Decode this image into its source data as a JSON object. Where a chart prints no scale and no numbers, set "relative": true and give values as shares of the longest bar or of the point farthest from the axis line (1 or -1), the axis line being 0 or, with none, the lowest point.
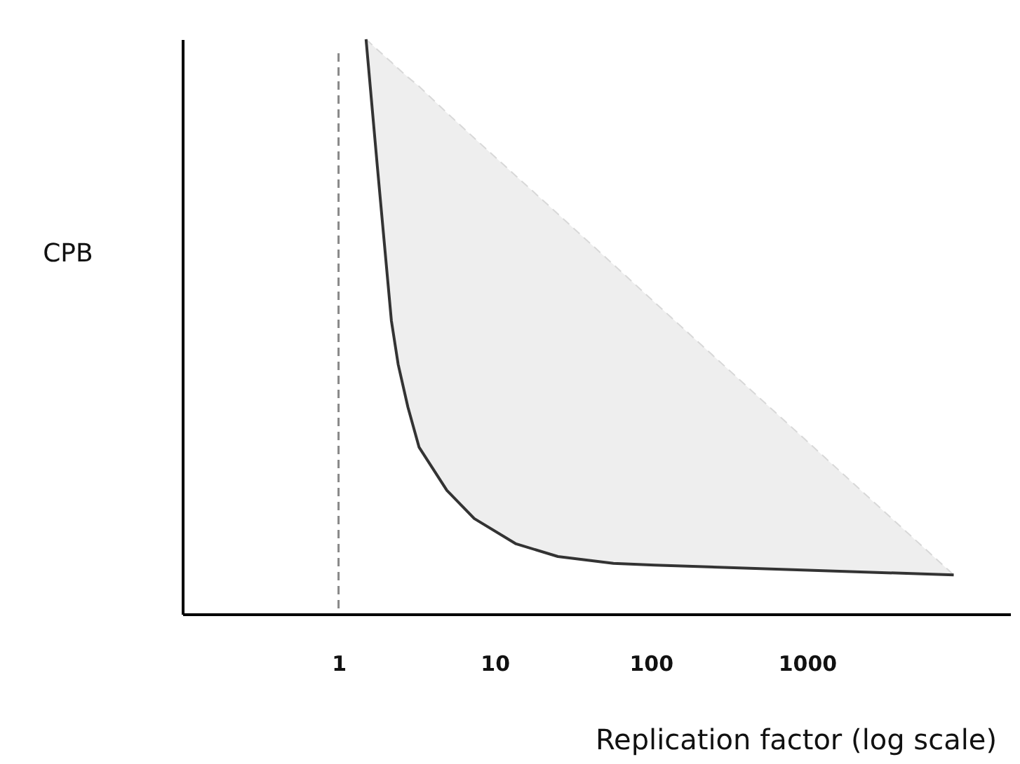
{
  "chart_data": {
    "type": "line",
    "xlabel": "Replication factor (log scale)",
    "ylabel": "CPB",
    "relative": true,
    "log": "x",
    "xlim": [
      0.1,
      20000
    ],
    "xticks": [
      1,
      10,
      100,
      {
        "value": 1000,
        "label": "1000"
      }
    ],
    "grid": false,
    "tick_labels": "x",
    "marker": "none",
    "ref_lines": [
      {
        "axis": "x",
        "value": 1,
        "color": "#888888",
        "line_style": "dashed"
      }
    ],
    "series": [
      {
        "color": "#333333",
        "line_style": "solid",
        "x": [
          1.5,
          1.77,
          2.18,
          2.41,
          2.78,
          3.28,
          4.94,
          7.4,
          13.7,
          25.4,
          57.6,
          106,
          8700
        ],
        "values": [
          1.0,
          0.78,
          0.51,
          0.434,
          0.36,
          0.29,
          0.215,
          0.166,
          0.122,
          0.1,
          0.088,
          0.085,
          0.068
        ],
        "lower": [
          1.0,
          0.78,
          0.51,
          0.434,
          0.36,
          0.29,
          0.215,
          0.166,
          0.122,
          0.1,
          0.088,
          0.085,
          0.068
        ],
        "upper": [
          1.0,
          0.982,
          0.96,
          0.949,
          0.934,
          0.918,
          0.872,
          0.828,
          0.762,
          0.696,
          0.608,
          0.542,
          0.068
        ]
      }
    ]
  }
}
